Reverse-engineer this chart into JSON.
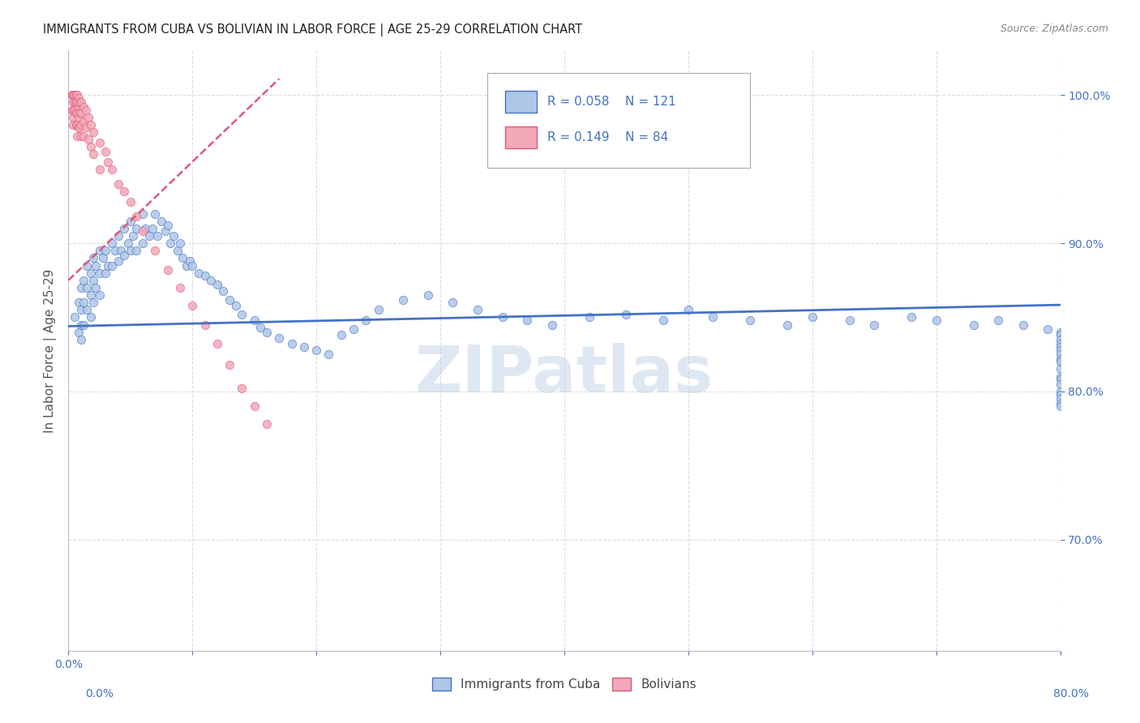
{
  "title": "IMMIGRANTS FROM CUBA VS BOLIVIAN IN LABOR FORCE | AGE 25-29 CORRELATION CHART",
  "source": "Source: ZipAtlas.com",
  "ylabel": "In Labor Force | Age 25-29",
  "ytick_values": [
    0.7,
    0.8,
    0.9,
    1.0
  ],
  "xlim": [
    0.0,
    0.8
  ],
  "ylim": [
    0.625,
    1.03
  ],
  "legend_r_cuba": "0.058",
  "legend_n_cuba": "121",
  "legend_r_bolivian": "0.149",
  "legend_n_bolivian": "84",
  "cuba_color": "#aec6e8",
  "bolivian_color": "#f2a8b8",
  "cuba_line_color": "#4472c4",
  "bolivian_line_color": "#e05878",
  "watermark": "ZIPatlas",
  "background_color": "#ffffff",
  "grid_color": "#dddddd",
  "cuba_x": [
    0.005,
    0.008,
    0.008,
    0.01,
    0.01,
    0.01,
    0.01,
    0.012,
    0.012,
    0.012,
    0.015,
    0.015,
    0.015,
    0.018,
    0.018,
    0.018,
    0.02,
    0.02,
    0.02,
    0.022,
    0.022,
    0.025,
    0.025,
    0.025,
    0.028,
    0.03,
    0.03,
    0.032,
    0.035,
    0.035,
    0.038,
    0.04,
    0.04,
    0.042,
    0.045,
    0.045,
    0.048,
    0.05,
    0.05,
    0.052,
    0.055,
    0.055,
    0.06,
    0.06,
    0.062,
    0.065,
    0.068,
    0.07,
    0.072,
    0.075,
    0.078,
    0.08,
    0.082,
    0.085,
    0.088,
    0.09,
    0.092,
    0.095,
    0.098,
    0.1,
    0.105,
    0.11,
    0.115,
    0.12,
    0.125,
    0.13,
    0.135,
    0.14,
    0.15,
    0.155,
    0.16,
    0.17,
    0.18,
    0.19,
    0.2,
    0.21,
    0.22,
    0.23,
    0.24,
    0.25,
    0.27,
    0.29,
    0.31,
    0.33,
    0.35,
    0.37,
    0.39,
    0.42,
    0.45,
    0.48,
    0.5,
    0.52,
    0.55,
    0.58,
    0.6,
    0.63,
    0.65,
    0.68,
    0.7,
    0.73,
    0.75,
    0.77,
    0.79,
    0.8,
    0.8,
    0.8,
    0.8,
    0.8,
    0.8,
    0.8,
    0.8,
    0.8,
    0.8,
    0.8,
    0.8,
    0.8,
    0.8,
    0.8,
    0.8,
    0.8,
    0.8
  ],
  "cuba_y": [
    0.85,
    0.86,
    0.84,
    0.87,
    0.855,
    0.845,
    0.835,
    0.875,
    0.86,
    0.845,
    0.885,
    0.87,
    0.855,
    0.88,
    0.865,
    0.85,
    0.89,
    0.875,
    0.86,
    0.885,
    0.87,
    0.895,
    0.88,
    0.865,
    0.89,
    0.895,
    0.88,
    0.885,
    0.9,
    0.885,
    0.895,
    0.905,
    0.888,
    0.895,
    0.91,
    0.892,
    0.9,
    0.915,
    0.895,
    0.905,
    0.91,
    0.895,
    0.92,
    0.9,
    0.91,
    0.905,
    0.91,
    0.92,
    0.905,
    0.915,
    0.908,
    0.912,
    0.9,
    0.905,
    0.895,
    0.9,
    0.89,
    0.885,
    0.888,
    0.885,
    0.88,
    0.878,
    0.875,
    0.872,
    0.868,
    0.862,
    0.858,
    0.852,
    0.848,
    0.843,
    0.84,
    0.836,
    0.832,
    0.83,
    0.828,
    0.825,
    0.838,
    0.842,
    0.848,
    0.855,
    0.862,
    0.865,
    0.86,
    0.855,
    0.85,
    0.848,
    0.845,
    0.85,
    0.852,
    0.848,
    0.855,
    0.85,
    0.848,
    0.845,
    0.85,
    0.848,
    0.845,
    0.85,
    0.848,
    0.845,
    0.848,
    0.845,
    0.842,
    0.84,
    0.838,
    0.835,
    0.832,
    0.83,
    0.828,
    0.825,
    0.822,
    0.82,
    0.815,
    0.81,
    0.808,
    0.805,
    0.8,
    0.798,
    0.795,
    0.792,
    0.79
  ],
  "bolivian_x": [
    0.003,
    0.003,
    0.003,
    0.004,
    0.004,
    0.004,
    0.004,
    0.004,
    0.004,
    0.005,
    0.005,
    0.005,
    0.006,
    0.006,
    0.006,
    0.006,
    0.007,
    0.007,
    0.007,
    0.007,
    0.007,
    0.008,
    0.008,
    0.008,
    0.008,
    0.009,
    0.009,
    0.009,
    0.01,
    0.01,
    0.01,
    0.01,
    0.012,
    0.012,
    0.012,
    0.014,
    0.014,
    0.016,
    0.016,
    0.018,
    0.018,
    0.02,
    0.02,
    0.025,
    0.025,
    0.03,
    0.032,
    0.035,
    0.04,
    0.045,
    0.05,
    0.055,
    0.06,
    0.07,
    0.08,
    0.09,
    0.1,
    0.11,
    0.12,
    0.13,
    0.14,
    0.15,
    0.16
  ],
  "bolivian_y": [
    1.0,
    1.0,
    0.99,
    1.0,
    1.0,
    0.995,
    0.99,
    0.985,
    0.98,
    1.0,
    0.995,
    0.99,
    1.0,
    0.995,
    0.988,
    0.98,
    1.0,
    0.995,
    0.988,
    0.98,
    0.972,
    0.998,
    0.992,
    0.985,
    0.978,
    0.995,
    0.988,
    0.978,
    0.995,
    0.988,
    0.98,
    0.972,
    0.992,
    0.982,
    0.972,
    0.99,
    0.978,
    0.985,
    0.97,
    0.98,
    0.965,
    0.975,
    0.96,
    0.968,
    0.95,
    0.962,
    0.955,
    0.95,
    0.94,
    0.935,
    0.928,
    0.918,
    0.908,
    0.895,
    0.882,
    0.87,
    0.858,
    0.845,
    0.832,
    0.818,
    0.802,
    0.79,
    0.778
  ],
  "cuba_trendline_x": [
    0.0,
    0.8
  ],
  "cuba_trendline_slope": 0.02,
  "cuba_trendline_intercept": 0.844,
  "bolivian_trendline_x_start": 0.0,
  "bolivian_trendline_x_end": 0.17,
  "bolivian_trendline_slope": 0.8,
  "bolivian_trendline_intercept": 0.875
}
